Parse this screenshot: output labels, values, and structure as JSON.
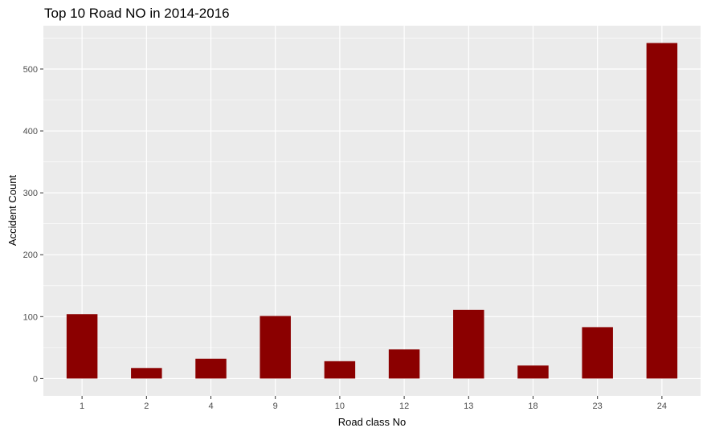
{
  "chart_data": {
    "type": "bar",
    "title": "Top 10 Road NO in 2014-2016",
    "xlabel": "Road class No",
    "ylabel": "Accident Count",
    "categories": [
      "1",
      "2",
      "4",
      "9",
      "10",
      "12",
      "13",
      "18",
      "23",
      "24"
    ],
    "values": [
      104,
      17,
      32,
      101,
      28,
      47,
      111,
      21,
      83,
      542
    ],
    "ylim": [
      -28,
      570
    ],
    "yticks": [
      "0",
      "100",
      "200",
      "300",
      "400",
      "500"
    ],
    "grid": true,
    "bar_color": "#8B0000",
    "panel_color": "#EBEBEB",
    "grid_color": "#FFFFFF",
    "tick_label_color": "#4D4D4D"
  }
}
